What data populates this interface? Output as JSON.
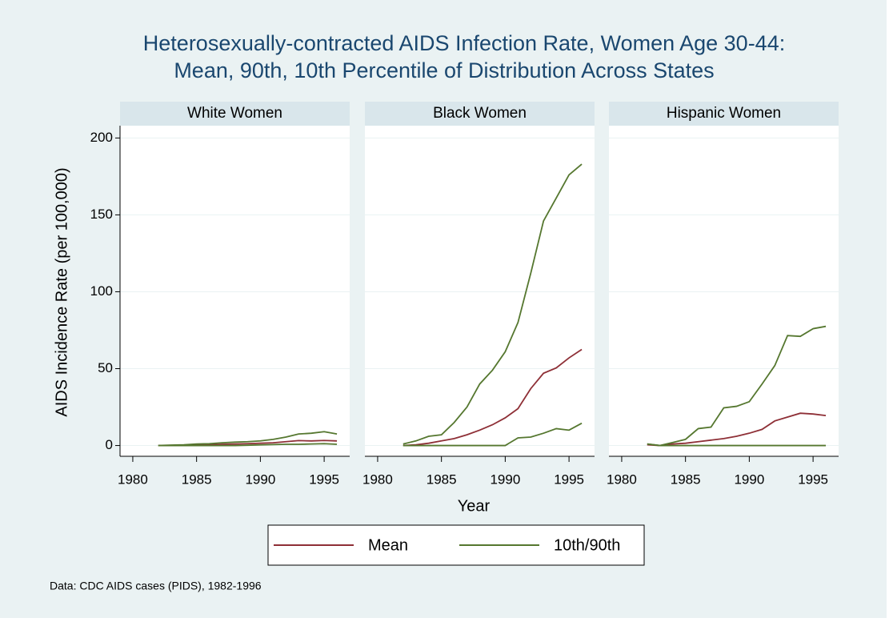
{
  "title": [
    "Heterosexually-contracted AIDS Infection Rate, Women Age 30-44:",
    "Mean, 90th, 10th Percentile of Distribution Across States"
  ],
  "y_label": "AIDS Incidence Rate (per 100,000)",
  "x_label": "Year",
  "note": "Data: CDC AIDS cases (PIDS), 1982-1996",
  "legend": [
    {
      "name": "Mean",
      "color": "#8e2f36"
    },
    {
      "name": "10th/90th",
      "color": "#55772f"
    }
  ],
  "chart_data": [
    {
      "type": "line",
      "title": "White Women",
      "x": [
        1982,
        1983,
        1984,
        1985,
        1986,
        1987,
        1988,
        1989,
        1990,
        1991,
        1992,
        1993,
        1994,
        1995,
        1996
      ],
      "series": [
        {
          "values": [
            0,
            0.1,
            0.2,
            0.4,
            0.5,
            0.8,
            1,
            1.2,
            1.5,
            1.8,
            2.5,
            3.2,
            3,
            3.3,
            3
          ]
        },
        {
          "values": [
            0,
            0.3,
            0.5,
            1,
            1.2,
            1.8,
            2.2,
            2.5,
            3,
            4,
            5.5,
            7.5,
            8,
            9,
            7.5
          ],
          "lower_values": [
            0,
            0,
            0,
            0,
            0,
            0,
            0,
            0.2,
            0.4,
            0.6,
            0.8,
            0.8,
            1,
            1.2,
            0.8
          ]
        }
      ],
      "xlim": [
        1979,
        1997
      ],
      "xticks": [
        1980,
        1985,
        1990,
        1995
      ],
      "ylim": [
        -7,
        208
      ],
      "yticks": [
        0,
        50,
        100,
        150,
        200
      ],
      "grid": true
    },
    {
      "type": "line",
      "title": "Black Women",
      "x": [
        1982,
        1983,
        1984,
        1985,
        1986,
        1987,
        1988,
        1989,
        1990,
        1991,
        1992,
        1993,
        1994,
        1995,
        1996
      ],
      "series": [
        {
          "values": [
            0,
            0.5,
            1.5,
            3,
            4.5,
            7,
            10,
            13.5,
            18,
            24,
            37,
            47,
            50.5,
            57,
            62.5
          ]
        },
        {
          "values": [
            1,
            3,
            6,
            7,
            15,
            25,
            40,
            49,
            61,
            80,
            112,
            146,
            161,
            176,
            183
          ],
          "lower_values": [
            0,
            0,
            0,
            0,
            0,
            0,
            0,
            0,
            0,
            5,
            5.5,
            8,
            11,
            10,
            14.5
          ]
        }
      ],
      "xlim": [
        1979,
        1997
      ],
      "xticks": [
        1980,
        1985,
        1990,
        1995
      ],
      "ylim": [
        -7,
        208
      ],
      "yticks": [
        0,
        50,
        100,
        150,
        200
      ],
      "grid": true
    },
    {
      "type": "line",
      "title": "Hispanic Women",
      "x": [
        1982,
        1983,
        1984,
        1985,
        1986,
        1987,
        1988,
        1989,
        1990,
        1991,
        1992,
        1993,
        1994,
        1995,
        1996
      ],
      "series": [
        {
          "values": [
            0.5,
            0,
            1,
            1.5,
            2.5,
            3.5,
            4.5,
            6,
            8,
            10.5,
            16,
            18.5,
            21,
            20.5,
            19.5
          ]
        },
        {
          "values": [
            1,
            0,
            2,
            4,
            11,
            12,
            24.5,
            25.5,
            28.5,
            40,
            52,
            71.5,
            71,
            76,
            77.5
          ],
          "lower_values": [
            1,
            0,
            0,
            0,
            0,
            0,
            0,
            0,
            0,
            0,
            0,
            0,
            0,
            0,
            0
          ]
        }
      ],
      "xlim": [
        1979,
        1997
      ],
      "xticks": [
        1980,
        1985,
        1990,
        1995
      ],
      "ylim": [
        -7,
        208
      ],
      "yticks": [
        0,
        50,
        100,
        150,
        200
      ],
      "grid": true
    }
  ]
}
